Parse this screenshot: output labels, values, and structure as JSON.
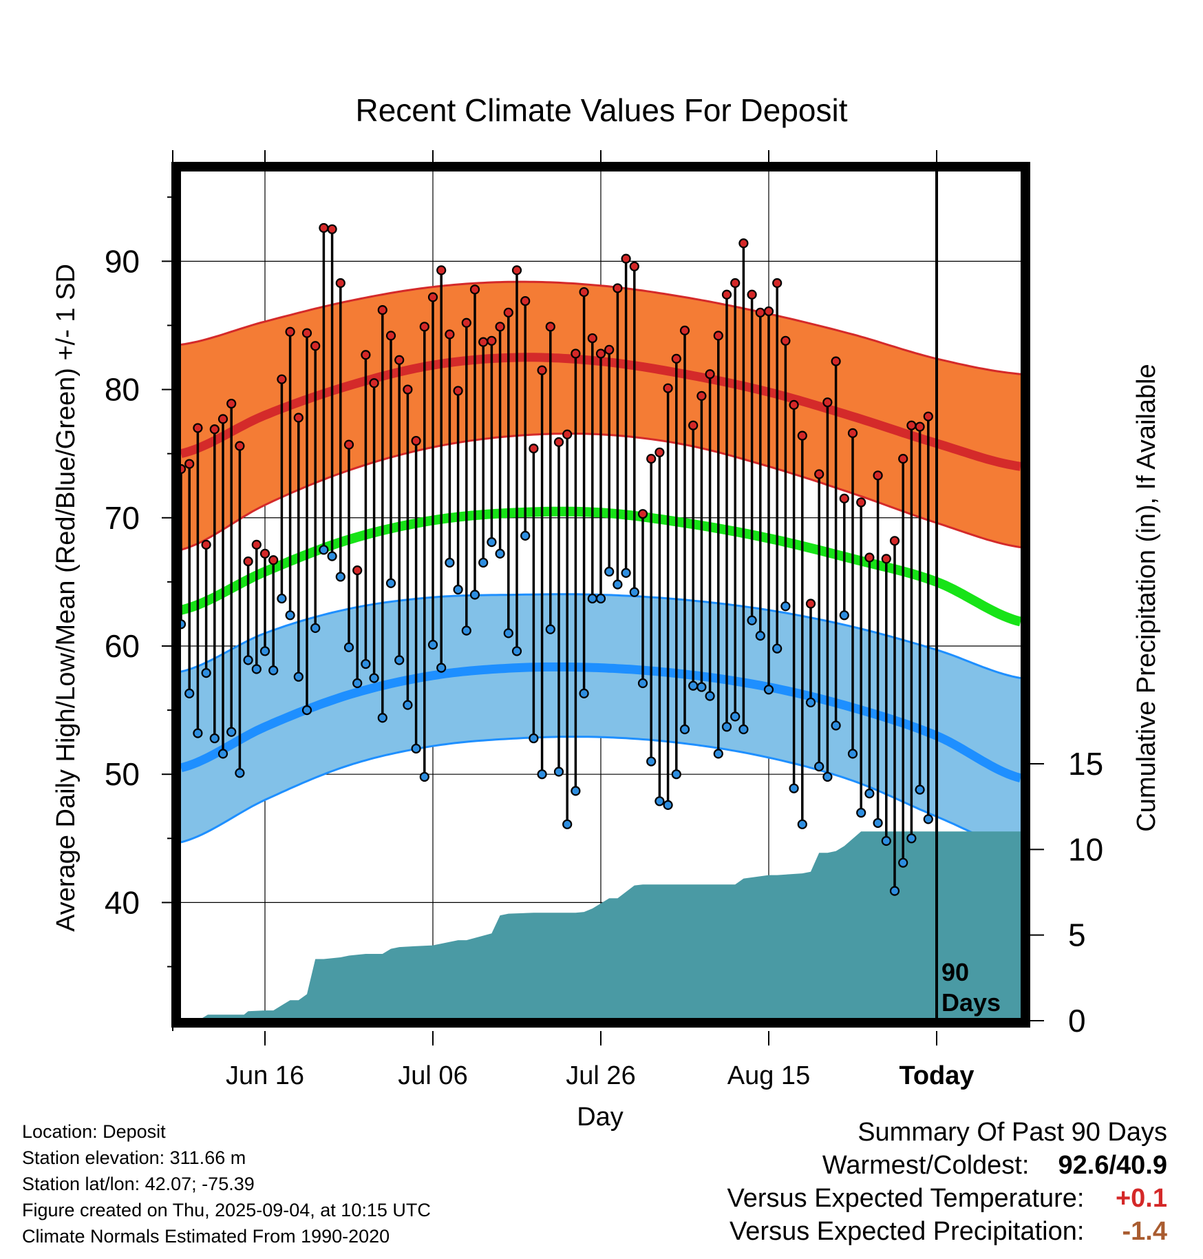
{
  "chart_data": {
    "type": "line",
    "title": "Recent Climate Values For Deposit",
    "xlabel": "Day",
    "ylabel_left": "Average Daily High/Low/Mean (Red/Blue/Green) +/- 1 SD",
    "ylabel_right": "Cumulative Precipitation (in), If Available",
    "x_range_days": [
      0,
      100
    ],
    "y_range": [
      31,
      97
    ],
    "y2_range": [
      0,
      17
    ],
    "x_ticks": [
      {
        "day": 10,
        "label": "Jun 16"
      },
      {
        "day": 30,
        "label": "Jul 06"
      },
      {
        "day": 50,
        "label": "Jul 26"
      },
      {
        "day": 70,
        "label": "Aug 15"
      },
      {
        "day": 90,
        "label": "Today"
      }
    ],
    "y_ticks": [
      40,
      50,
      60,
      70,
      80,
      90
    ],
    "y2_ticks": [
      0,
      5,
      10,
      15
    ],
    "today_marker": {
      "day": 90,
      "label": [
        "90",
        "Days"
      ]
    },
    "normals": {
      "days": [
        0,
        10,
        20,
        30,
        40,
        50,
        60,
        70,
        80,
        90,
        100
      ],
      "high_mean": [
        75.0,
        78.0,
        80.3,
        81.9,
        82.5,
        82.2,
        81.2,
        79.8,
        77.9,
        75.8,
        74.0
      ],
      "high_upper": [
        83.5,
        85.3,
        86.9,
        88.0,
        88.4,
        88.1,
        87.2,
        85.9,
        84.3,
        82.4,
        81.2
      ],
      "high_lower": [
        67.5,
        71.0,
        73.7,
        75.5,
        76.4,
        76.5,
        75.7,
        74.0,
        71.9,
        69.6,
        67.7
      ],
      "mean": [
        62.8,
        65.8,
        68.3,
        69.8,
        70.4,
        70.4,
        69.6,
        68.4,
        66.8,
        65.0,
        61.9
      ],
      "low_mean": [
        50.5,
        53.7,
        56.2,
        57.7,
        58.3,
        58.3,
        57.8,
        56.8,
        55.2,
        53.0,
        49.7
      ],
      "low_upper": [
        58.0,
        61.0,
        62.9,
        63.8,
        64.0,
        64.0,
        63.6,
        62.8,
        61.5,
        59.7,
        57.5
      ],
      "low_lower": [
        44.7,
        48.0,
        50.7,
        52.2,
        52.8,
        52.9,
        52.4,
        51.3,
        49.5,
        46.7,
        44.1
      ]
    },
    "series": [
      {
        "name": "High",
        "values": [
          73.8,
          74.2,
          77.0,
          67.9,
          76.9,
          77.7,
          78.9,
          75.6,
          66.6,
          67.9,
          67.2,
          66.7,
          80.8,
          84.5,
          77.8,
          84.4,
          83.4,
          92.6,
          92.5,
          88.3,
          75.7,
          65.9,
          82.7,
          80.5,
          86.2,
          84.2,
          82.3,
          80.0,
          76.0,
          84.9,
          87.2,
          89.3,
          84.3,
          79.9,
          85.2,
          87.8,
          83.7,
          83.8,
          84.9,
          86.0,
          89.3,
          86.9,
          75.4,
          81.5,
          84.9,
          75.9,
          76.5,
          82.8,
          87.6,
          84.0,
          82.8,
          83.1,
          87.9,
          90.2,
          89.6,
          70.3,
          74.6,
          75.1,
          80.1,
          82.4,
          84.6,
          77.2,
          79.5,
          81.2,
          84.2,
          87.4,
          88.3,
          91.4,
          87.4,
          86.0,
          86.1,
          88.3,
          83.8,
          78.8,
          76.4,
          63.3,
          73.4,
          79.0,
          82.2,
          71.5,
          76.6,
          71.2,
          66.9,
          73.3,
          66.8,
          68.2,
          74.6,
          77.2,
          77.1,
          77.9
        ]
      },
      {
        "name": "Low",
        "values": [
          61.7,
          56.3,
          53.2,
          57.9,
          52.8,
          51.6,
          53.3,
          50.1,
          58.9,
          58.2,
          59.6,
          58.1,
          63.7,
          62.4,
          57.6,
          55.0,
          61.4,
          67.5,
          67.0,
          65.4,
          59.9,
          57.1,
          58.6,
          57.5,
          54.4,
          64.9,
          58.9,
          55.4,
          52.0,
          49.8,
          60.1,
          58.3,
          66.5,
          64.4,
          61.2,
          64.0,
          66.5,
          68.1,
          67.2,
          61.0,
          59.6,
          68.6,
          52.8,
          50.0,
          61.3,
          50.2,
          46.1,
          48.7,
          56.3,
          63.7,
          63.7,
          65.8,
          64.8,
          65.7,
          64.2,
          57.1,
          51.0,
          47.9,
          47.6,
          50.0,
          53.5,
          56.9,
          56.8,
          56.1,
          51.6,
          53.7,
          54.5,
          53.5,
          62.0,
          60.8,
          56.6,
          59.8,
          63.1,
          48.9,
          46.1,
          55.6,
          50.6,
          49.8,
          53.8,
          62.4,
          51.6,
          47.0,
          48.5,
          46.2,
          44.8,
          40.9,
          43.1,
          45.0,
          48.8,
          46.5
        ]
      }
    ],
    "precip_cumulative": {
      "days": [
        0,
        2,
        3.2,
        4,
        7.5,
        8,
        10,
        11,
        12,
        13,
        14,
        15,
        16,
        17,
        19,
        20,
        22,
        24,
        25,
        26,
        28,
        30,
        31,
        32,
        33,
        34,
        37,
        38,
        39,
        42,
        47,
        48,
        49,
        51,
        52,
        54,
        55,
        66,
        67,
        70,
        71,
        74,
        75,
        76,
        77,
        78,
        79,
        81,
        83,
        90,
        91,
        100
      ],
      "values": [
        0,
        0,
        0.35,
        0.35,
        0.35,
        0.55,
        0.6,
        0.6,
        0.9,
        1.2,
        1.2,
        1.55,
        3.6,
        3.6,
        3.7,
        3.8,
        3.9,
        3.9,
        4.2,
        4.3,
        4.35,
        4.4,
        4.5,
        4.6,
        4.7,
        4.7,
        5.1,
        6.15,
        6.25,
        6.3,
        6.3,
        6.35,
        6.55,
        7.15,
        7.15,
        7.9,
        7.95,
        7.95,
        8.3,
        8.5,
        8.5,
        8.6,
        8.7,
        9.8,
        9.8,
        9.9,
        10.2,
        11.05,
        11.05,
        11.05,
        11.05,
        11.05
      ]
    }
  },
  "info": {
    "location": "Location: Deposit",
    "elevation": "Station elevation: 311.66 m",
    "latlon": "Station lat/lon: 42.07; -75.39",
    "created": "Figure created on Thu, 2025-09-04, at 10:15 UTC",
    "normals": "Climate Normals Estimated From 1990-2020"
  },
  "summary": {
    "heading": "Summary Of Past 90 Days",
    "warm_cold_label": "Warmest/Coldest:",
    "warm_cold_value": "92.6/40.9",
    "temp_label": "Versus Expected Temperature:",
    "temp_value": "+0.1",
    "precip_label": "Versus Expected Precipitation:",
    "precip_value": "-1.4"
  },
  "colors": {
    "high_band": "#f47c35",
    "high_line": "#d42a2a",
    "mean_line": "#17e317",
    "low_band": "#82c1e8",
    "low_line": "#1e8fff",
    "precip": "#4a9aa4",
    "high_dot": "#d42828",
    "low_dot": "#2e8ee0",
    "temp_positive": "#d42828",
    "precip_negative": "#a95c30"
  }
}
